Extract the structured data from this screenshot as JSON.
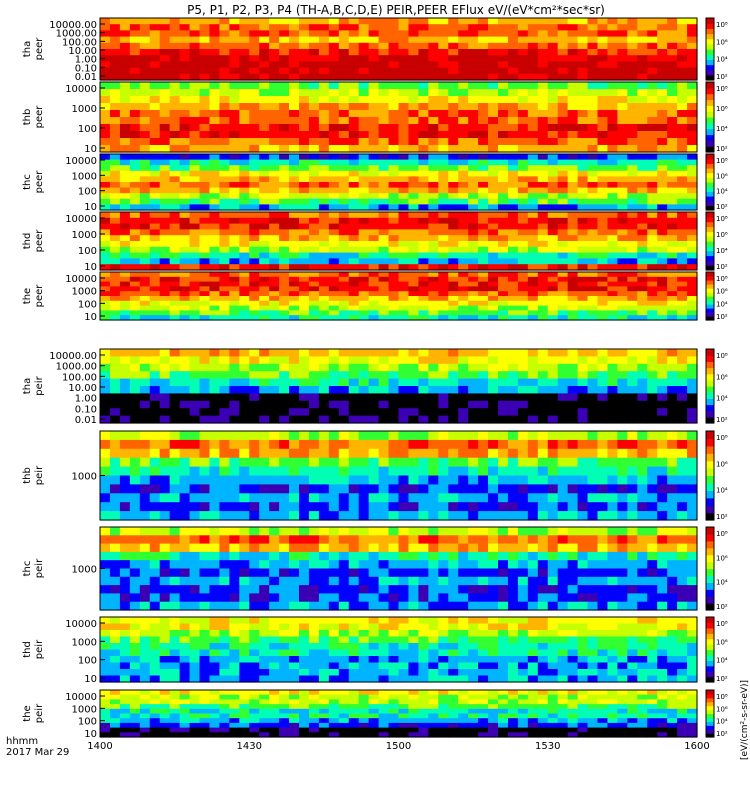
{
  "title": "P5, P1, P2, P3, P4 (TH-A,B,C,D,E) PEIR,PEER EFlux eV/(eV*cm²*sec*sr)",
  "x_axis": {
    "ticks": [
      "1400",
      "1430",
      "1500",
      "1530",
      "1600"
    ],
    "label_line1": "hhmm",
    "label_line2": "2017 Mar 29"
  },
  "colorbar_label": "[eV/(cm²-s-sr-eV)]",
  "colorbar_ticks": [
    "10²",
    "10⁴",
    "10⁶",
    "10⁸"
  ],
  "colors": {
    "scale": [
      "#000000",
      "#3c00b4",
      "#0000ff",
      "#00b4ff",
      "#00ffb4",
      "#32ff32",
      "#c8ff00",
      "#ffff00",
      "#ffb400",
      "#ff6400",
      "#ff0000",
      "#c80000"
    ]
  },
  "chart_data": [
    {
      "type": "heatmap",
      "probe": "tha",
      "species": "peer",
      "label": [
        "tha",
        "peer"
      ],
      "y_ticks": [
        "10000.00",
        "1000.00",
        "100.00",
        "10.00",
        "1.00",
        "0.10",
        "0.01"
      ]
    },
    {
      "type": "heatmap",
      "probe": "thb",
      "species": "peer",
      "label": [
        "thb",
        "peer"
      ],
      "y_ticks": [
        "10000",
        "1000",
        "100",
        "10"
      ]
    },
    {
      "type": "heatmap",
      "probe": "thc",
      "species": "peer",
      "label": [
        "thc",
        "peer"
      ],
      "y_ticks": [
        "10000",
        "1000",
        "100",
        "10"
      ]
    },
    {
      "type": "heatmap",
      "probe": "thd",
      "species": "peer",
      "label": [
        "thd",
        "peer"
      ],
      "y_ticks": [
        "10000",
        "1000",
        "100",
        "10"
      ]
    },
    {
      "type": "heatmap",
      "probe": "the",
      "species": "peer",
      "label": [
        "the",
        "peer"
      ],
      "y_ticks": [
        "10000",
        "1000",
        "100",
        "10"
      ]
    },
    {
      "type": "heatmap",
      "probe": "tha",
      "species": "peir",
      "label": [
        "tha",
        "peir"
      ],
      "y_ticks": [
        "10000.00",
        "1000.00",
        "100.00",
        "10.00",
        "1.00",
        "0.10",
        "0.01"
      ]
    },
    {
      "type": "heatmap",
      "probe": "thb",
      "species": "peir",
      "label": [
        "thb",
        "peir"
      ],
      "y_ticks": [
        "1000"
      ]
    },
    {
      "type": "heatmap",
      "probe": "thc",
      "species": "peir",
      "label": [
        "thc",
        "peir"
      ],
      "y_ticks": [
        "1000"
      ]
    },
    {
      "type": "heatmap",
      "probe": "thd",
      "species": "peir",
      "label": [
        "thd",
        "peir"
      ],
      "y_ticks": [
        "10000",
        "1000",
        "100",
        "10"
      ]
    },
    {
      "type": "heatmap",
      "probe": "the",
      "species": "peir",
      "label": [
        "the",
        "peir"
      ],
      "y_ticks": [
        "10000",
        "1000",
        "100",
        "10"
      ]
    }
  ]
}
